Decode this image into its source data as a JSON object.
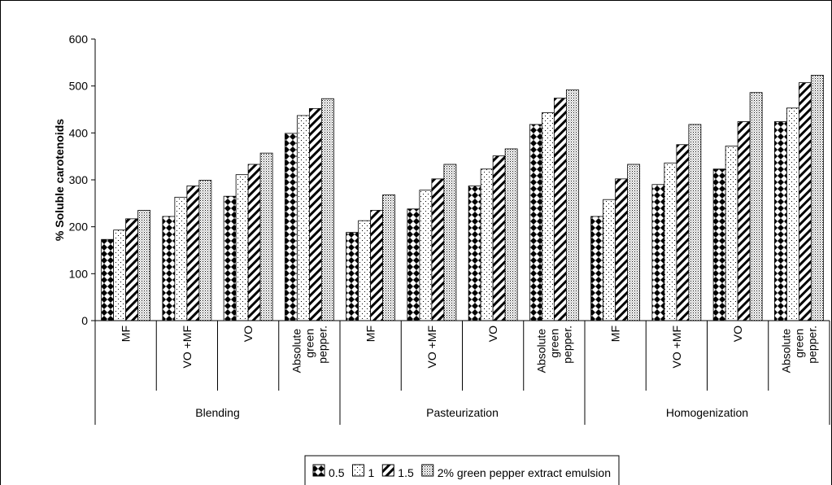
{
  "chart_data": {
    "type": "bar",
    "y_label": "% Soluble carotenoids",
    "categories": [
      "MF",
      "VO +MF",
      "VO",
      "Absolute green pepper.",
      "MF",
      "VO +MF",
      "VO",
      "Absolute green pepper.",
      "MF",
      "VO +MF",
      "VO",
      "Absolute green pepper."
    ],
    "groups": [
      "Blending",
      "Pasteurization",
      "Homogenization"
    ],
    "series": [
      {
        "name": "0.5",
        "color": "#000000",
        "pattern": "checker",
        "values": [
          173,
          222,
          265,
          399,
          188,
          238,
          287,
          418,
          222,
          290,
          323,
          424
        ]
      },
      {
        "name": "1",
        "color": "#000000",
        "pattern": "dots",
        "values": [
          193,
          263,
          311,
          437,
          213,
          278,
          323,
          443,
          258,
          336,
          372,
          453
        ]
      },
      {
        "name": "1.5",
        "color": "#000000",
        "pattern": "hatch",
        "values": [
          217,
          287,
          333,
          452,
          235,
          302,
          351,
          474,
          302,
          375,
          424,
          507
        ]
      },
      {
        "name": "2% green pepper extract emulsion",
        "color": "#000000",
        "pattern": "dense-dots",
        "values": [
          235,
          299,
          357,
          473,
          268,
          333,
          366,
          492,
          333,
          418,
          486,
          523
        ]
      }
    ],
    "ylim": [
      0,
      600
    ],
    "yticks": [
      0,
      100,
      200,
      300,
      400,
      500,
      600
    ],
    "grid": false,
    "legend": "bottom"
  }
}
